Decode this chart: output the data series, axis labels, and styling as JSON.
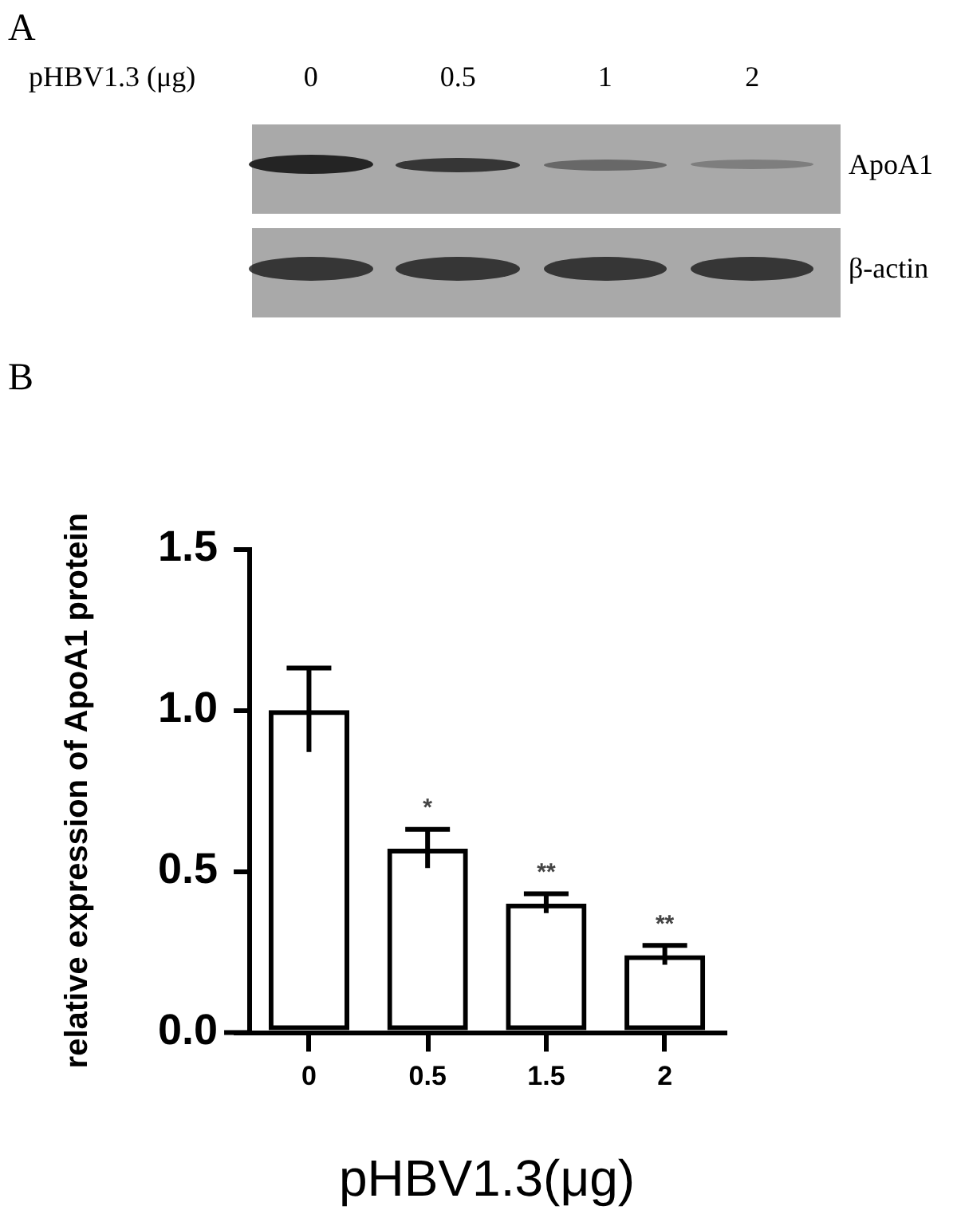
{
  "chart_data": [
    {
      "type": "other",
      "title": "A",
      "xlabel": "pHBV1.3 (μg)",
      "categories": [
        "0",
        "0.5",
        "1",
        "2"
      ],
      "y_categories": [
        "ApoA1",
        "β-actin"
      ]
    },
    {
      "type": "bar",
      "title": "B",
      "categories": [
        "0",
        "0.5",
        "1.5",
        "2"
      ],
      "values": [
        1.0,
        0.57,
        0.4,
        0.24
      ],
      "errors": [
        0.13,
        0.06,
        0.03,
        0.03
      ],
      "color": "#000000",
      "ylim": [
        0,
        1.5
      ],
      "yticks": [
        {
          "value": 0,
          "label": "0.0"
        },
        0.5,
        {
          "value": 1,
          "label": "1.0"
        },
        1.5
      ],
      "xlabel": "pHBV1.3(μg)",
      "ylabel": "relative expression of ApoA1 protein",
      "grid": false,
      "legend": false,
      "annotations": [
        "*",
        "**",
        "**"
      ]
    }
  ]
}
